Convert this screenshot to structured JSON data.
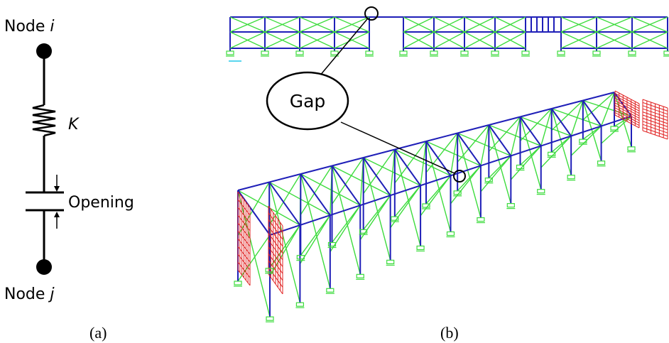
{
  "panel_a": {
    "node_top_prefix": "Node ",
    "node_top_var": "i",
    "spring_label": "K",
    "opening_label": "Opening",
    "node_bottom_prefix": "Node ",
    "node_bottom_var": "j",
    "caption": "(a)"
  },
  "panel_b": {
    "gap_label": "Gap",
    "caption": "(b)"
  },
  "colors": {
    "frame_blue": "#1f1fb8",
    "brace_green": "#3ddc3d",
    "wall_red": "#e02020",
    "ink": "#000000"
  }
}
